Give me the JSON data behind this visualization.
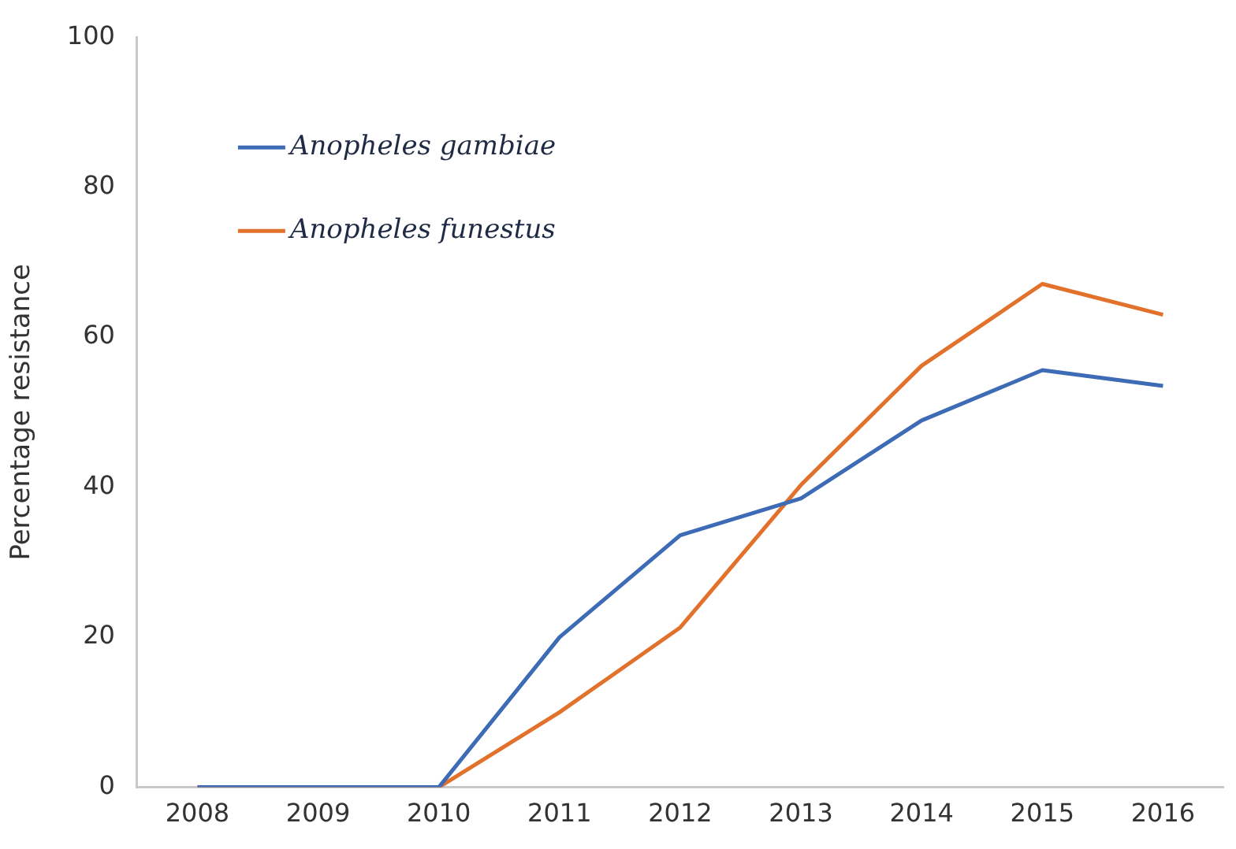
{
  "chart_data": {
    "type": "line",
    "ylabel": "Percentage resistance",
    "categories": [
      "2008",
      "2009",
      "2010",
      "2011",
      "2012",
      "2013",
      "2014",
      "2015",
      "2016"
    ],
    "series": [
      {
        "name": "Anopheles gambiae",
        "color": "#3d6bb5",
        "values": [
          0,
          0,
          0,
          20,
          33.6,
          38.5,
          48.9,
          55.6,
          53.5
        ]
      },
      {
        "name": "Anopheles funestus",
        "color": "#e2712b",
        "values": [
          0,
          0,
          0,
          10,
          21.3,
          40.3,
          56.2,
          67.1,
          63
        ]
      }
    ],
    "ylim": [
      0,
      100
    ],
    "yticks": [
      0,
      20,
      40,
      60,
      80,
      100
    ],
    "grid": false,
    "legend": "top left",
    "marker": "none",
    "line_style": "solid"
  }
}
